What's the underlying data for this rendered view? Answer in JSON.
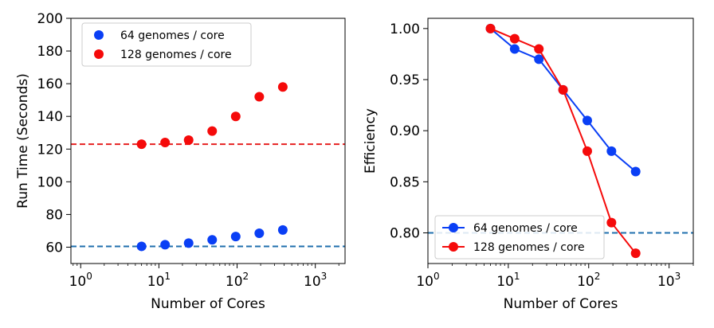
{
  "chart_data": [
    {
      "type": "scatter",
      "xlabel": "Number of Cores",
      "ylabel": "Run Time (Seconds)",
      "xscale": "log",
      "xlim": [
        0.75,
        2400
      ],
      "ylim": [
        50,
        200
      ],
      "xticks": [
        {
          "value": 1,
          "base": "10",
          "exp": "0"
        },
        {
          "value": 10,
          "base": "10",
          "exp": "1"
        },
        {
          "value": 100,
          "base": "10",
          "exp": "2"
        },
        {
          "value": 1000,
          "base": "10",
          "exp": "3"
        }
      ],
      "yticks": [
        {
          "value": 60,
          "label": "60"
        },
        {
          "value": 80,
          "label": "80"
        },
        {
          "value": 100,
          "label": "100"
        },
        {
          "value": 120,
          "label": "120"
        },
        {
          "value": 140,
          "label": "140"
        },
        {
          "value": 160,
          "label": "160"
        },
        {
          "value": 180,
          "label": "180"
        },
        {
          "value": 200,
          "label": "200"
        }
      ],
      "x": [
        6,
        12,
        24,
        48,
        96,
        192,
        384
      ],
      "series": [
        {
          "name": "64 genomes / core",
          "color": "#0a3ff5",
          "values": [
            60.5,
            61.5,
            62.5,
            64.5,
            66.5,
            68.5,
            70.5
          ]
        },
        {
          "name": "128 genomes / core",
          "color": "#f50a0a",
          "values": [
            123,
            124,
            125.5,
            131,
            140,
            152,
            158
          ]
        }
      ],
      "reference_lines": [
        {
          "y": 60.5,
          "color": "#1f6fae",
          "style": "dashed"
        },
        {
          "y": 123,
          "color": "#e62020",
          "style": "dashed"
        }
      ],
      "legend": {
        "placement": "upper-left"
      },
      "grid": false
    },
    {
      "type": "line",
      "xlabel": "Number of Cores",
      "ylabel": "Efficiency",
      "xscale": "log",
      "xlim": [
        1,
        2000
      ],
      "ylim": [
        0.77,
        1.01
      ],
      "xticks": [
        {
          "value": 1,
          "base": "10",
          "exp": "0"
        },
        {
          "value": 10,
          "base": "10",
          "exp": "1"
        },
        {
          "value": 100,
          "base": "10",
          "exp": "2"
        },
        {
          "value": 1000,
          "base": "10",
          "exp": "3"
        }
      ],
      "yticks": [
        {
          "value": 0.8,
          "label": "0.80"
        },
        {
          "value": 0.85,
          "label": "0.85"
        },
        {
          "value": 0.9,
          "label": "0.90"
        },
        {
          "value": 0.95,
          "label": "0.95"
        },
        {
          "value": 1.0,
          "label": "1.00"
        }
      ],
      "x": [
        6,
        12,
        24,
        48,
        96,
        192,
        384
      ],
      "series": [
        {
          "name": "64 genomes / core",
          "color": "#0a3ff5",
          "values": [
            1.0,
            0.98,
            0.97,
            0.94,
            0.91,
            0.88,
            0.86
          ]
        },
        {
          "name": "128 genomes / core",
          "color": "#f50a0a",
          "values": [
            1.0,
            0.99,
            0.98,
            0.94,
            0.88,
            0.81,
            0.78
          ]
        }
      ],
      "reference_lines": [
        {
          "y": 0.8,
          "color": "#1f6fae",
          "style": "dashed"
        }
      ],
      "legend": {
        "placement": "lower-left"
      },
      "grid": false
    }
  ]
}
